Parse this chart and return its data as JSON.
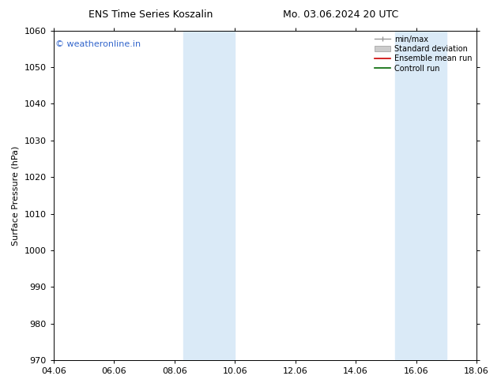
{
  "title_left": "ENS Time Series Koszalin",
  "title_right": "Mo. 03.06.2024 20 UTC",
  "ylabel": "Surface Pressure (hPa)",
  "ylim": [
    970,
    1060
  ],
  "yticks": [
    970,
    980,
    990,
    1000,
    1010,
    1020,
    1030,
    1040,
    1050,
    1060
  ],
  "xtick_labels": [
    "04.06",
    "06.06",
    "08.06",
    "10.06",
    "12.06",
    "14.06",
    "16.06",
    "18.06"
  ],
  "xtick_positions": [
    0,
    2,
    4,
    6,
    8,
    10,
    12,
    14
  ],
  "shaded_bands": [
    {
      "x_start": 4.3,
      "x_end": 6.0
    },
    {
      "x_start": 11.3,
      "x_end": 13.0
    }
  ],
  "shade_color": "#daeaf7",
  "watermark_text": "© weatheronline.in",
  "watermark_color": "#3366cc",
  "legend_entries": [
    {
      "label": "min/max",
      "color": "#999999",
      "style": "minmax"
    },
    {
      "label": "Standard deviation",
      "color": "#cccccc",
      "style": "stddev"
    },
    {
      "label": "Ensemble mean run",
      "color": "#cc0000",
      "style": "line"
    },
    {
      "label": "Controll run",
      "color": "#006600",
      "style": "line"
    }
  ],
  "background_color": "#ffffff",
  "title_fontsize": 9,
  "axis_label_fontsize": 8,
  "tick_fontsize": 8,
  "watermark_fontsize": 8
}
